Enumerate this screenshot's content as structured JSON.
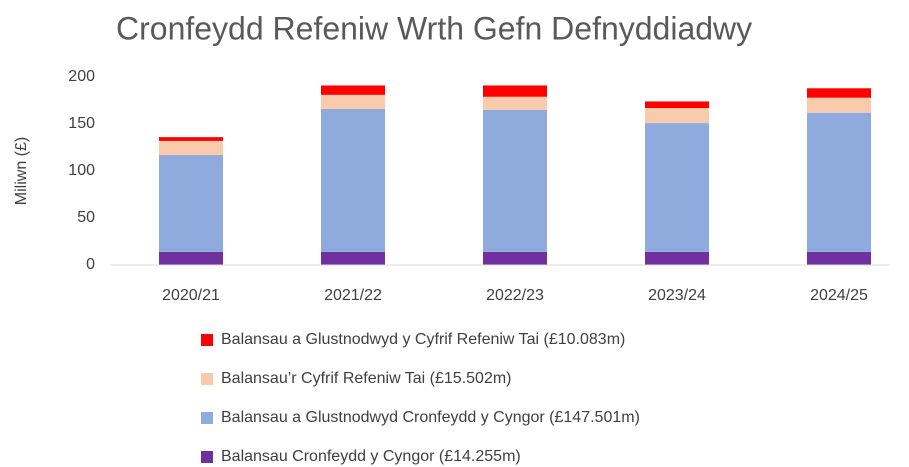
{
  "chart_data": {
    "type": "stacked_bar",
    "title": "Cronfeydd Refeniw Wrth Gefn Defnyddiadwy",
    "y_label": "Miliwn (£)",
    "categories": [
      "2020/21",
      "2021/22",
      "2022/23",
      "2023/24",
      "2024/25"
    ],
    "series": [
      {
        "name": "Balansau Cronfeydd y Cyngor (£14.255m)",
        "color": "#7030a0",
        "values": [
          14,
          14,
          14,
          14,
          14
        ]
      },
      {
        "name": "Balansau a Glustnodwyd Cronfeydd y Cyngor (£147.501m)",
        "color": "#8faadc",
        "values": [
          103,
          152,
          151,
          137,
          148
        ]
      },
      {
        "name": "Balansau’r Cyfrif Refeniw Tai (£15.502m)",
        "color": "#f8cbad",
        "values": [
          15,
          15,
          14,
          16,
          16
        ]
      },
      {
        "name": "Balansau a Glustnodwyd y Cyfrif Refeniw Tai (£10.083m)",
        "color": "#ff0000",
        "values": [
          4,
          10,
          12,
          7,
          10
        ]
      }
    ],
    "ylim": [
      0,
      200
    ],
    "yticks": [
      0,
      50,
      100,
      150,
      200
    ],
    "grid": false
  }
}
